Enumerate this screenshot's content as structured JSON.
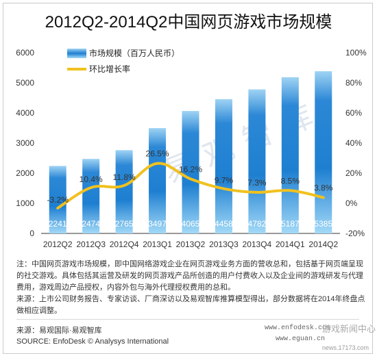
{
  "title": "2012Q2-2014Q2中国网页游戏市场规模",
  "watermark": "易观智库",
  "legend": {
    "bar_label": "市场规模（百万人民币）",
    "line_label": "环比增长率"
  },
  "colors": {
    "bar_top": "#8ecbf2",
    "bar_mid": "#1e7fd1",
    "bar_bottom": "#8fd0f5",
    "line": "#f1c11e",
    "axis_text": "#333333"
  },
  "chart_data": {
    "type": "bar",
    "categories": [
      "2012Q2",
      "2012Q3",
      "2012Q4",
      "2013Q1",
      "2013Q2",
      "2013Q3",
      "2013Q4",
      "2014Q1",
      "2014Q2"
    ],
    "series": [
      {
        "name": "市场规模（百万人民币）",
        "type": "bar",
        "axis": "left",
        "values": [
          2241,
          2474,
          2765,
          3497,
          4065,
          4458,
          4782,
          5187,
          5385
        ]
      },
      {
        "name": "环比增长率",
        "type": "line",
        "axis": "right",
        "values": [
          -3.2,
          10.4,
          11.8,
          26.5,
          16.2,
          9.7,
          7.3,
          8.5,
          3.8
        ],
        "labels": [
          "-3.2%",
          "10.4%",
          "11.8%",
          "26.5%",
          "16.2%",
          "9.7%",
          "7.3%",
          "8.5%",
          "3.8%"
        ]
      }
    ],
    "bar_labels": [
      "2241",
      "2474",
      "2765",
      "3497",
      "4065",
      "4458",
      "4782",
      "5187",
      "5385"
    ],
    "y_left": {
      "lim": [
        0,
        6000
      ],
      "ticks": [
        "0",
        "1000",
        "2000",
        "3000",
        "4000",
        "5000",
        "6000"
      ]
    },
    "y_right": {
      "lim": [
        -20,
        100
      ],
      "ticks": [
        "-20%",
        "0%",
        "20%",
        "40%",
        "60%",
        "80%",
        "100%"
      ]
    },
    "legend_position": "top-left",
    "grid": false
  },
  "notes": {
    "lines": [
      "注：中国网页游戏市场规模，即中国网络游戏企业在网页游戏业务方面的营收总和，包括基于网页端呈现",
      "的社交游戏。具体包括其运营及研发的网页游戏产品所创造的用户付费收入以及企业间的游戏研发与代理",
      "费用，游戏周边产品授权，内容外包与海外代理授权费用的总和。",
      "来源：上市公司财务报告、专家访谈、厂商深访以及易观智库推算模型得出，部分数据将在2014年终盘点",
      "做相应调整。"
    ]
  },
  "source": {
    "cn": "来源：易观国际·易观智库",
    "en": "SOURCE: EnfoDesk © Analysys International",
    "site1": "www.enfodesk.com",
    "site2": "www.eguan.cn",
    "corner_logo": "游戏新闻中心",
    "corner_url": "news.17173.com"
  }
}
